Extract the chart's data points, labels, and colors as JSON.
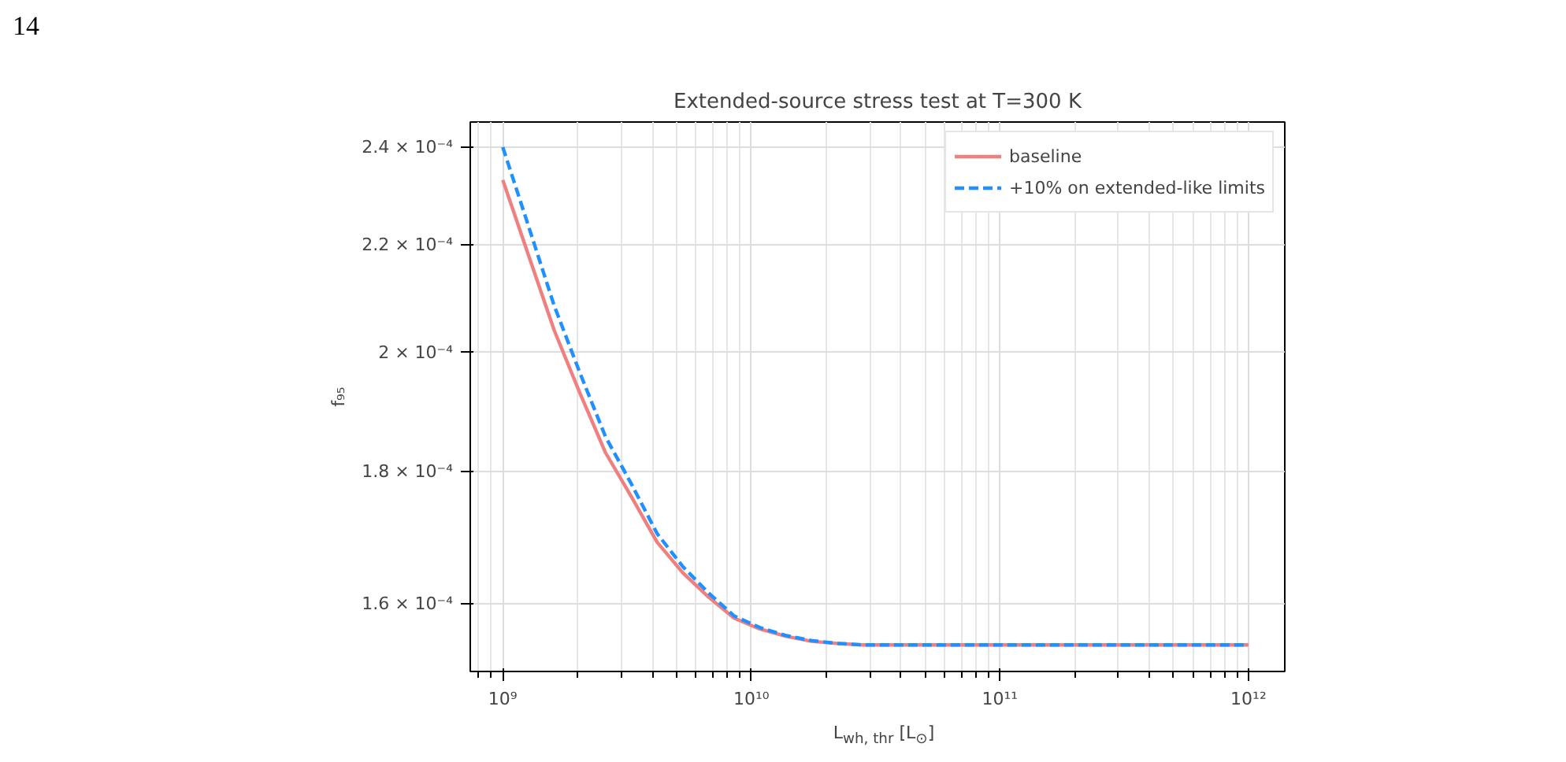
{
  "chart_data": {
    "type": "line",
    "title": "Extended-source stress test at T=300 K",
    "xlabel": "L$_{wh, thr}$ [L$_{⊙}$]",
    "ylabel": "f₉₅",
    "annotations": [
      "14"
    ],
    "log": "xy",
    "grid": true,
    "legend": "top right",
    "xlim": [
      740000000.0,
      1400000000000.0
    ],
    "xticks": [
      {
        "value": 1000000000.0,
        "label": "10⁹"
      },
      {
        "value": 10000000000.0,
        "label": "10¹⁰"
      },
      {
        "value": 100000000000.0,
        "label": "10¹¹"
      },
      {
        "value": 1000000000000.0,
        "label": "10¹²"
      }
    ],
    "ylim": [
      0.0001507,
      0.0002454
    ],
    "yticks": [
      {
        "value": 0.00016,
        "label": "1.6 × 10⁻⁴"
      },
      {
        "value": 0.00018,
        "label": "1.8 × 10⁻⁴"
      },
      {
        "value": 0.0002,
        "label": "2 × 10⁻⁴"
      },
      {
        "value": 0.00022,
        "label": "2.2 × 10⁻⁴"
      },
      {
        "value": 0.00024,
        "label": "2.4 × 10⁻⁴"
      }
    ],
    "x": [
      1000000000.0,
      1270000000.0,
      1610000000.0,
      2040000000.0,
      2590000000.0,
      3290000000.0,
      4180000000.0,
      5300000000.0,
      6720000000.0,
      8530000000.0,
      10800000000.0,
      13700000000.0,
      17400000000.0,
      22100000000.0,
      28000000000.0,
      100000000000.0,
      1000000000000.0
    ],
    "series": [
      {
        "name": "baseline",
        "color": "#f08080",
        "line_style": "solid",
        "values": [
          0.0002331,
          0.000218,
          0.000204,
          0.000193,
          0.000183,
          0.000176,
          0.000169,
          0.0001645,
          0.000161,
          0.000158,
          0.0001565,
          0.0001555,
          0.0001548,
          0.0001545,
          0.0001543,
          0.0001543,
          0.0001543
        ]
      },
      {
        "name": "+10% on extended-like limits",
        "color": "#1e90ff",
        "line_style": "dashed",
        "values": [
          0.00024,
          0.0002237,
          0.0002085,
          0.0001965,
          0.0001856,
          0.000178,
          0.0001703,
          0.0001654,
          0.0001616,
          0.0001583,
          0.0001567,
          0.0001556,
          0.0001549,
          0.0001545,
          0.0001543,
          0.0001543,
          0.0001543
        ]
      }
    ]
  }
}
